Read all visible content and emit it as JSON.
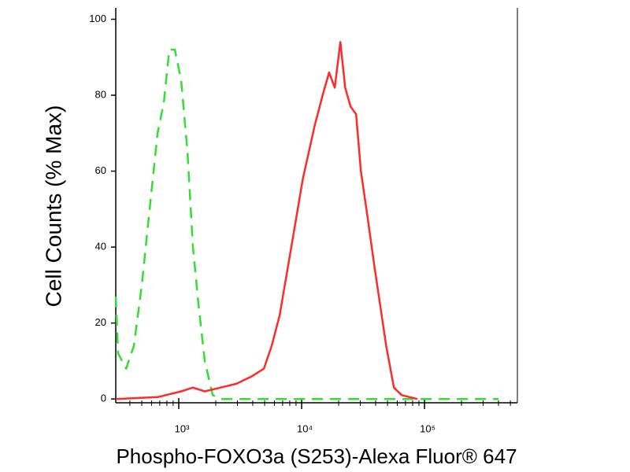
{
  "chart_data": {
    "type": "line",
    "xlabel": "Phospho-FOXO3a (S253)-Alexa Fluor® 647",
    "ylabel": "Cell Counts (% Max)",
    "xscale": "log",
    "xlim": [
      307,
      570000
    ],
    "ylim": [
      -1,
      103
    ],
    "xticks": [
      {
        "value": 1000,
        "label": "10³"
      },
      {
        "value": 10000,
        "label": "10⁴"
      },
      {
        "value": 100000,
        "label": "10⁵"
      }
    ],
    "xminor_ticks": [
      400,
      500,
      600,
      700,
      800,
      900,
      2000,
      3000,
      4000,
      5000,
      6000,
      7000,
      8000,
      9000,
      20000,
      30000,
      40000,
      50000,
      60000,
      70000,
      80000,
      90000,
      200000,
      300000,
      400000,
      500000
    ],
    "yticks": [
      0,
      20,
      40,
      60,
      80,
      100
    ],
    "series": [
      {
        "color": "#33dd33",
        "dash": true,
        "x": [
          307,
          321,
          373,
          431,
          500,
          579,
          672,
          755,
          838,
          929,
          1045,
          1177,
          1304,
          1446,
          1628,
          1888,
          2188,
          100000,
          400000
        ],
        "values": [
          27,
          12,
          8,
          14,
          30,
          50,
          70,
          78,
          92,
          92,
          84,
          65,
          40,
          25,
          10,
          1,
          0,
          0,
          0
        ]
      },
      {
        "color": "#ff2a2a",
        "dash": false,
        "x": [
          307,
          672,
          1045,
          1304,
          1628,
          2188,
          2937,
          3948,
          4925,
          5706,
          6618,
          8240,
          10240,
          12760,
          14820,
          16730,
          18590,
          20650,
          22590,
          25030,
          27740,
          30360,
          33690,
          39070,
          48770,
          56370,
          65250,
          87460
        ],
        "values": [
          0,
          0.5,
          2,
          3,
          2,
          3,
          4,
          6,
          8,
          14,
          22,
          40,
          58,
          72,
          80,
          86,
          82,
          94,
          82,
          77,
          75,
          60,
          50,
          35,
          14,
          3,
          1,
          0
        ]
      }
    ]
  }
}
